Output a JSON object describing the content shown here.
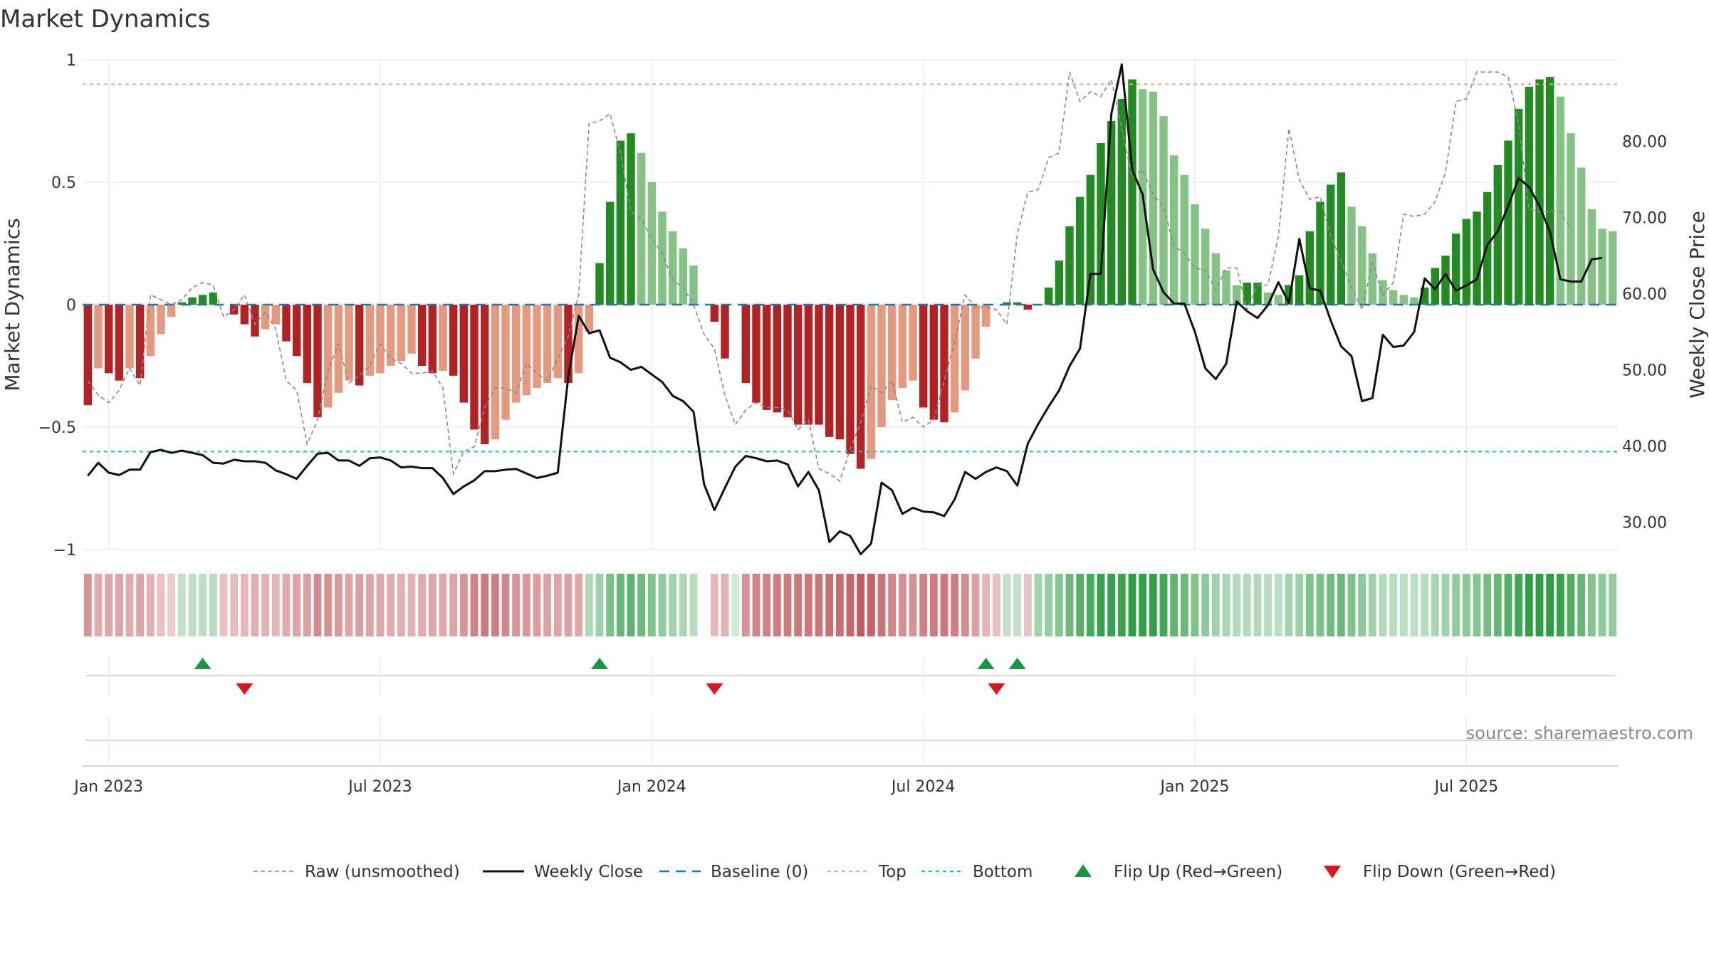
{
  "colors": {
    "bar_neg_strong": "#b22222",
    "bar_neg_weak": "#e59a80",
    "bar_pos_strong": "#228b22",
    "bar_pos_weak": "#86c286",
    "raw_line": "#8a8a8a",
    "close_line": "#111111",
    "baseline": "#1f77b4",
    "top_line": "#f4a582",
    "bottom_line": "#17becf",
    "flip_up": "#1a9641",
    "flip_down": "#d7191c",
    "grid": "#e6e6e6"
  },
  "chart_data": {
    "type": "bar",
    "title": "Market Dynamics",
    "ylabel": "Market Dynamics",
    "y2label": "Weekly Close Price",
    "ylim": [
      -1,
      1
    ],
    "y2lim": [
      22.4,
      89
    ],
    "yticks": [
      "1",
      "0.5",
      "0",
      "−0.5",
      "−1"
    ],
    "yticks_values": [
      1,
      0.5,
      0,
      -0.5,
      -1
    ],
    "y2ticks": [
      "80.00",
      "70.00",
      "60.00",
      "50.00",
      "40.00",
      "30.00"
    ],
    "y2ticks_values": [
      80,
      70,
      60,
      50,
      40,
      30
    ],
    "x_start": "Jan 2023",
    "x_start_week_offset": -2,
    "xticks": [
      "Jan 2023",
      "Jul 2023",
      "Jan 2024",
      "Jul 2024",
      "Jan 2025",
      "Jul 2025"
    ],
    "xticks_week": [
      2,
      28,
      54,
      80,
      106,
      132
    ],
    "top_threshold": 0.9,
    "bottom_threshold": -0.6,
    "grid": true,
    "legend_placement": "bottom",
    "legend": [
      "Raw (unsmoothed)",
      "Weekly Close",
      "Baseline (0)",
      "Top",
      "Bottom",
      "Flip Up (Red→Green)",
      "Flip Down (Green→Red)"
    ],
    "source": "source: sharemaestro.com",
    "flip_up_weeks": [
      11,
      49,
      86,
      89
    ],
    "flip_down_weeks": [
      15,
      60,
      87
    ],
    "missing_weeks": [
      59
    ],
    "momentum": [
      -0.41,
      -0.26,
      -0.28,
      -0.31,
      -0.26,
      -0.3,
      -0.21,
      -0.12,
      -0.05,
      0.01,
      0.03,
      0.04,
      0.05,
      0.0,
      -0.04,
      -0.08,
      -0.13,
      -0.1,
      -0.08,
      -0.15,
      -0.21,
      -0.32,
      -0.46,
      -0.42,
      -0.36,
      -0.31,
      -0.33,
      -0.29,
      -0.28,
      -0.25,
      -0.23,
      -0.2,
      -0.25,
      -0.28,
      -0.27,
      -0.29,
      -0.4,
      -0.51,
      -0.57,
      -0.55,
      -0.47,
      -0.4,
      -0.37,
      -0.34,
      -0.32,
      -0.3,
      -0.32,
      -0.28,
      -0.11,
      0.17,
      0.42,
      0.67,
      0.7,
      0.62,
      0.5,
      0.38,
      0.3,
      0.23,
      0.16,
      0.07,
      -0.07,
      -0.22,
      0.0,
      -0.32,
      -0.4,
      -0.43,
      -0.44,
      -0.46,
      -0.49,
      -0.49,
      -0.49,
      -0.54,
      -0.55,
      -0.61,
      -0.67,
      -0.63,
      -0.5,
      -0.39,
      -0.34,
      -0.31,
      -0.42,
      -0.47,
      -0.48,
      -0.44,
      -0.35,
      -0.22,
      -0.09,
      0.0,
      0.01,
      0.01,
      -0.02,
      0.0,
      0.07,
      0.18,
      0.32,
      0.44,
      0.53,
      0.66,
      0.75,
      0.84,
      0.92,
      0.88,
      0.87,
      0.77,
      0.61,
      0.53,
      0.41,
      0.31,
      0.21,
      0.14,
      0.08,
      0.09,
      0.09,
      0.05,
      0.04,
      0.08,
      0.12,
      0.3,
      0.42,
      0.49,
      0.54,
      0.4,
      0.32,
      0.21,
      0.1,
      0.06,
      0.04,
      0.03,
      0.07,
      0.15,
      0.2,
      0.29,
      0.35,
      0.38,
      0.46,
      0.57,
      0.67,
      0.8,
      0.89,
      0.92,
      0.93,
      0.85,
      0.7,
      0.56,
      0.39,
      0.31,
      0.3
    ],
    "raw": [
      -0.31,
      -0.37,
      -0.4,
      -0.35,
      -0.26,
      -0.33,
      0.04,
      0.02,
      0.0,
      0.02,
      0.07,
      0.09,
      0.08,
      -0.05,
      -0.02,
      0.04,
      -0.08,
      -0.03,
      -0.1,
      -0.31,
      -0.35,
      -0.57,
      -0.47,
      -0.27,
      -0.16,
      -0.32,
      -0.29,
      -0.25,
      -0.16,
      -0.22,
      -0.24,
      -0.28,
      -0.28,
      -0.27,
      -0.34,
      -0.69,
      -0.6,
      -0.58,
      -0.42,
      -0.34,
      -0.34,
      -0.36,
      -0.24,
      -0.28,
      -0.31,
      -0.22,
      -0.13,
      0.04,
      0.74,
      0.75,
      0.78,
      0.62,
      0.38,
      0.35,
      0.27,
      0.21,
      0.1,
      0.07,
      0.0,
      -0.12,
      -0.18,
      -0.37,
      -0.49,
      -0.43,
      -0.4,
      -0.42,
      -0.42,
      -0.43,
      -0.51,
      -0.47,
      -0.67,
      -0.69,
      -0.72,
      -0.59,
      -0.48,
      -0.33,
      -0.36,
      -0.31,
      -0.48,
      -0.46,
      -0.5,
      -0.47,
      -0.31,
      -0.15,
      0.04,
      -0.01,
      -0.01,
      -0.02,
      -0.08,
      0.29,
      0.46,
      0.47,
      0.6,
      0.62,
      0.95,
      0.83,
      0.87,
      0.85,
      0.92,
      0.72,
      0.52,
      0.55,
      0.45,
      0.4,
      0.24,
      0.21,
      0.15,
      0.14,
      0.06,
      0.15,
      0.15,
      -0.02,
      0.08,
      0.08,
      0.28,
      0.72,
      0.51,
      0.43,
      0.44,
      0.28,
      0.18,
      0.07,
      -0.02,
      0.17,
      0.04,
      0.09,
      0.37,
      0.36,
      0.37,
      0.42,
      0.54,
      0.83,
      0.84,
      0.95,
      0.95,
      0.95,
      0.93,
      0.74,
      0.39,
      0.38,
      0.38,
      0.38,
      0.31
    ],
    "close": [
      36.1,
      37.8,
      36.5,
      36.2,
      36.9,
      36.9,
      39.2,
      39.5,
      39.1,
      39.4,
      39.1,
      38.8,
      37.8,
      37.7,
      38.2,
      38.0,
      38.0,
      37.8,
      36.8,
      36.3,
      35.7,
      37.4,
      39.0,
      39.1,
      38.1,
      38.1,
      37.4,
      38.4,
      38.5,
      38.1,
      37.2,
      37.3,
      37.1,
      37.1,
      35.8,
      33.7,
      34.7,
      35.5,
      36.7,
      36.7,
      36.9,
      37.0,
      36.4,
      35.8,
      36.1,
      36.5,
      49.1,
      57.1,
      54.8,
      55.2,
      51.6,
      51.0,
      50.0,
      50.4,
      49.4,
      48.4,
      46.6,
      45.9,
      44.5,
      35.0,
      31.6,
      34.5,
      37.3,
      38.7,
      38.4,
      38.0,
      38.1,
      37.6,
      34.7,
      36.6,
      34.2,
      27.4,
      28.8,
      28.2,
      25.8,
      27.2,
      35.2,
      34.2,
      31.1,
      31.9,
      31.4,
      31.3,
      30.8,
      33.0,
      36.6,
      35.7,
      36.6,
      37.2,
      36.7,
      34.8,
      40.3,
      42.9,
      45.2,
      47.3,
      50.5,
      52.8,
      62.6,
      62.6,
      83.6,
      90.1,
      76.3,
      73.0,
      63.2,
      60.2,
      58.7,
      58.7,
      55.0,
      50.2,
      48.8,
      50.8,
      59.0,
      57.7,
      56.8,
      58.5,
      61.5,
      58.8,
      67.2,
      60.7,
      60.4,
      56.5,
      53.1,
      51.8,
      45.9,
      46.3,
      54.6,
      53.0,
      53.2,
      55.0,
      62.0,
      60.6,
      62.6,
      60.4,
      61.1,
      61.9,
      66.4,
      68.2,
      71.5,
      75.2,
      74.0,
      71.5,
      68.1,
      61.9,
      61.6,
      61.6,
      64.5,
      64.7
    ],
    "trend_strength": [
      -0.41,
      -0.26,
      -0.28,
      -0.31,
      -0.26,
      -0.3,
      -0.21,
      -0.12,
      -0.05,
      0.1,
      0.12,
      0.14,
      0.15,
      -0.1,
      -0.14,
      -0.18,
      -0.23,
      -0.2,
      -0.18,
      -0.25,
      -0.31,
      -0.32,
      -0.46,
      -0.42,
      -0.36,
      -0.31,
      -0.33,
      -0.29,
      -0.28,
      -0.25,
      -0.23,
      -0.2,
      -0.25,
      -0.28,
      -0.27,
      -0.29,
      -0.4,
      -0.51,
      -0.57,
      -0.55,
      -0.47,
      -0.4,
      -0.37,
      -0.34,
      -0.32,
      -0.3,
      -0.32,
      -0.28,
      0.2,
      0.32,
      0.52,
      0.67,
      0.7,
      0.62,
      0.5,
      0.38,
      0.3,
      0.23,
      0.16,
      0.07,
      -0.17,
      -0.22,
      0.0,
      -0.42,
      -0.5,
      -0.53,
      -0.54,
      -0.56,
      -0.59,
      -0.59,
      -0.59,
      -0.64,
      -0.65,
      -0.71,
      -0.77,
      -0.73,
      -0.6,
      -0.49,
      -0.44,
      -0.41,
      -0.52,
      -0.57,
      -0.58,
      -0.54,
      -0.45,
      -0.32,
      -0.19,
      -0.1,
      0.09,
      0.09,
      -0.12,
      0.3,
      0.37,
      0.48,
      0.62,
      0.74,
      0.83,
      0.96,
      0.95,
      0.94,
      1.02,
      0.98,
      0.97,
      0.87,
      0.71,
      0.63,
      0.51,
      0.41,
      0.31,
      0.24,
      0.18,
      0.19,
      0.19,
      0.15,
      0.14,
      0.28,
      0.32,
      0.5,
      0.52,
      0.59,
      0.64,
      0.5,
      0.42,
      0.31,
      0.2,
      0.16,
      0.14,
      0.13,
      0.17,
      0.25,
      0.3,
      0.39,
      0.45,
      0.48,
      0.56,
      0.67,
      0.77,
      0.9,
      0.99,
      1.02,
      1.03,
      0.95,
      0.8,
      0.66,
      0.49,
      0.41,
      0.4
    ]
  }
}
